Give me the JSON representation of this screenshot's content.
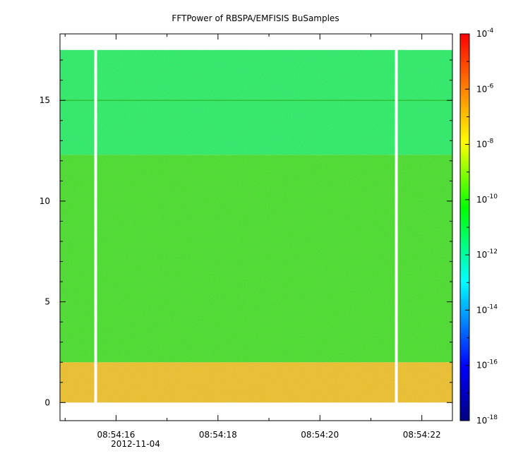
{
  "chart_data": {
    "type": "heatmap",
    "title": "FFTPower of RBSPA/EMFISIS  BuSamples",
    "x": {
      "range": [
        "08:54:14.9",
        "08:54:22.6"
      ],
      "tick_labels": [
        "08:54:16",
        "08:54:18",
        "08:54:20",
        "08:54:22"
      ],
      "date_label": "2012-11-04"
    },
    "y": {
      "range": [
        -0.9,
        18.3
      ],
      "ticks": [
        0,
        5,
        10,
        15
      ],
      "tick_labels": [
        "0",
        "5",
        "10",
        "15"
      ]
    },
    "colorbar": {
      "scale": "log",
      "range": [
        "1e-18",
        "1e-4"
      ],
      "tick_labels": [
        {
          "base": "10",
          "exp": "-4"
        },
        {
          "base": "10",
          "exp": "-6"
        },
        {
          "base": "10",
          "exp": "-8"
        },
        {
          "base": "10",
          "exp": "-10"
        },
        {
          "base": "10",
          "exp": "-12"
        },
        {
          "base": "10",
          "exp": "-14"
        },
        {
          "base": "10",
          "exp": "-16"
        },
        {
          "base": "10",
          "exp": "-18"
        }
      ],
      "colormap": [
        "#00007f",
        "#0000ff",
        "#00ffff",
        "#00ff00",
        "#ffff00",
        "#ff7f00",
        "#ff0000"
      ]
    },
    "data_region": {
      "y_min": 0,
      "y_max": 17.5
    },
    "bands": [
      {
        "y_from": 0,
        "y_to": 2.0,
        "level": "1e-9",
        "color": "#f0c020"
      },
      {
        "y_from": 2.0,
        "y_to": 12.3,
        "level": "1e-11",
        "color": "#40e020"
      },
      {
        "y_from": 12.3,
        "y_to": 17.5,
        "level": "1e-12",
        "color": "#20f060"
      }
    ],
    "line_feature": {
      "y": 15.0,
      "color": "#30c030"
    },
    "gaps": [
      "08:54:15.6",
      "08:54:21.5"
    ]
  }
}
